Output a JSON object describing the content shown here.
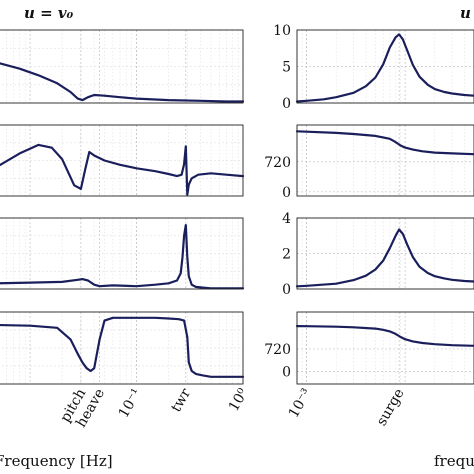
{
  "figure": {
    "left_title": "u = v₀",
    "right_title_fragment": "u",
    "left_xlabel": "Frequency [Hz]",
    "right_xlabel": "frequ"
  },
  "colors": {
    "line": "#1a1f5c",
    "grid_major": "#c8c8c8",
    "grid_minor": "#e4e4e4",
    "axis": "#222222"
  },
  "chart_data": [
    {
      "type": "line",
      "panel": "left-1",
      "xscale": "log",
      "xlim": [
        0.005,
        1
      ],
      "ylim": [
        0,
        1
      ],
      "x": [
        0.005,
        0.008,
        0.012,
        0.018,
        0.024,
        0.028,
        0.031,
        0.035,
        0.04,
        0.05,
        0.07,
        0.1,
        0.2,
        0.4,
        0.7,
        1.0
      ],
      "y": [
        0.55,
        0.47,
        0.38,
        0.27,
        0.15,
        0.06,
        0.04,
        0.08,
        0.11,
        0.1,
        0.08,
        0.06,
        0.04,
        0.03,
        0.02,
        0.02
      ]
    },
    {
      "type": "line",
      "panel": "left-2",
      "xscale": "log",
      "xlim": [
        0.005,
        1
      ],
      "ylim": [
        0,
        1
      ],
      "x": [
        0.005,
        0.008,
        0.012,
        0.016,
        0.02,
        0.026,
        0.03,
        0.033,
        0.036,
        0.04,
        0.05,
        0.07,
        0.1,
        0.15,
        0.2,
        0.24,
        0.265,
        0.28,
        0.29,
        0.3,
        0.31,
        0.33,
        0.38,
        0.5,
        0.7,
        1.0
      ],
      "y": [
        0.42,
        0.6,
        0.72,
        0.68,
        0.52,
        0.15,
        0.1,
        0.38,
        0.62,
        0.57,
        0.5,
        0.44,
        0.39,
        0.35,
        0.31,
        0.28,
        0.3,
        0.45,
        0.7,
        0.02,
        0.16,
        0.25,
        0.3,
        0.32,
        0.3,
        0.28
      ]
    },
    {
      "type": "line",
      "panel": "left-3",
      "xscale": "log",
      "xlim": [
        0.005,
        1
      ],
      "ylim": [
        0,
        1
      ],
      "x": [
        0.005,
        0.01,
        0.02,
        0.028,
        0.031,
        0.035,
        0.04,
        0.045,
        0.06,
        0.1,
        0.15,
        0.2,
        0.24,
        0.26,
        0.27,
        0.28,
        0.29,
        0.3,
        0.31,
        0.33,
        0.36,
        0.42,
        0.5,
        0.7,
        1.0
      ],
      "y": [
        0.08,
        0.09,
        0.1,
        0.13,
        0.14,
        0.12,
        0.06,
        0.04,
        0.05,
        0.04,
        0.06,
        0.08,
        0.12,
        0.22,
        0.45,
        0.75,
        0.9,
        0.45,
        0.18,
        0.06,
        0.03,
        0.02,
        0.01,
        0.01,
        0.01
      ]
    },
    {
      "type": "line",
      "panel": "left-4",
      "xscale": "log",
      "xlim": [
        0.005,
        1
      ],
      "ylim": [
        0,
        1
      ],
      "x": [
        0.005,
        0.01,
        0.018,
        0.024,
        0.028,
        0.031,
        0.034,
        0.037,
        0.04,
        0.045,
        0.05,
        0.06,
        0.08,
        0.1,
        0.15,
        0.2,
        0.25,
        0.28,
        0.3,
        0.31,
        0.33,
        0.36,
        0.42,
        0.5,
        0.7,
        1.0
      ],
      "y": [
        0.82,
        0.81,
        0.78,
        0.62,
        0.42,
        0.3,
        0.22,
        0.18,
        0.22,
        0.62,
        0.88,
        0.92,
        0.92,
        0.92,
        0.92,
        0.91,
        0.9,
        0.88,
        0.65,
        0.3,
        0.18,
        0.14,
        0.12,
        0.1,
        0.1,
        0.1
      ]
    },
    {
      "type": "line",
      "panel": "right-1",
      "xscale": "log",
      "xlim": [
        0.0008,
        0.05
      ],
      "ylim": [
        0,
        10
      ],
      "yticks": [
        "0",
        "5",
        "10"
      ],
      "x": [
        0.0008,
        0.001,
        0.0015,
        0.002,
        0.003,
        0.004,
        0.005,
        0.006,
        0.007,
        0.008,
        0.0087,
        0.0095,
        0.0105,
        0.012,
        0.014,
        0.017,
        0.02,
        0.025,
        0.03,
        0.04,
        0.05
      ],
      "y": [
        0.2,
        0.3,
        0.5,
        0.8,
        1.4,
        2.3,
        3.5,
        5.3,
        7.6,
        9.0,
        9.4,
        8.7,
        7.2,
        5.2,
        3.6,
        2.5,
        1.9,
        1.5,
        1.3,
        1.1,
        1.0
      ]
    },
    {
      "type": "line",
      "panel": "right-2",
      "xscale": "log",
      "xlim": [
        0.0008,
        0.05
      ],
      "ylim": [
        -100,
        1600
      ],
      "yticks": [
        "720",
        "0"
      ],
      "x": [
        0.0008,
        0.001,
        0.002,
        0.003,
        0.005,
        0.007,
        0.008,
        0.009,
        0.01,
        0.012,
        0.015,
        0.02,
        0.03,
        0.05
      ],
      "y": [
        1450,
        1440,
        1410,
        1385,
        1340,
        1270,
        1190,
        1110,
        1060,
        1010,
        970,
        940,
        920,
        900
      ]
    },
    {
      "type": "line",
      "panel": "right-3",
      "xscale": "log",
      "xlim": [
        0.0008,
        0.05
      ],
      "ylim": [
        0,
        4
      ],
      "yticks": [
        "0",
        "2",
        "4"
      ],
      "x": [
        0.0008,
        0.001,
        0.002,
        0.003,
        0.004,
        0.005,
        0.006,
        0.007,
        0.008,
        0.0087,
        0.0095,
        0.0105,
        0.012,
        0.014,
        0.017,
        0.02,
        0.025,
        0.03,
        0.04,
        0.05
      ],
      "y": [
        0.15,
        0.18,
        0.3,
        0.5,
        0.75,
        1.1,
        1.6,
        2.3,
        3.0,
        3.35,
        3.1,
        2.5,
        1.8,
        1.25,
        0.9,
        0.72,
        0.6,
        0.52,
        0.45,
        0.42
      ]
    },
    {
      "type": "line",
      "panel": "right-4",
      "xscale": "log",
      "xlim": [
        0.0008,
        0.05
      ],
      "ylim": [
        -400,
        1900
      ],
      "yticks": [
        "720",
        "0"
      ],
      "x": [
        0.0008,
        0.001,
        0.002,
        0.003,
        0.005,
        0.006,
        0.007,
        0.008,
        0.009,
        0.01,
        0.012,
        0.015,
        0.02,
        0.03,
        0.05
      ],
      "y": [
        1450,
        1445,
        1430,
        1410,
        1370,
        1330,
        1280,
        1200,
        1100,
        1030,
        960,
        910,
        870,
        840,
        820
      ]
    }
  ],
  "x_ticks_left": {
    "pitch": "pitch",
    "heave": "heave",
    "tenth": "10⁻¹",
    "twr": "twr",
    "one": "10⁰"
  },
  "x_ticks_right": {
    "milli": "10⁻³",
    "surge": "surge"
  }
}
